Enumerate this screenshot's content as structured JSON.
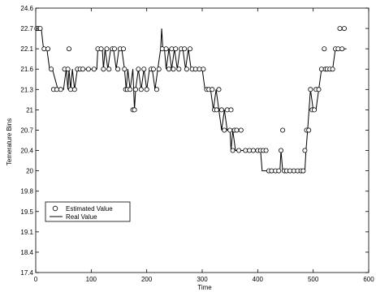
{
  "chart_data": {
    "type": "line",
    "title": "",
    "xlabel": "Time",
    "ylabel": "Temerature Bins",
    "xlim": [
      0,
      600
    ],
    "ylim": [
      17.4,
      24.6
    ],
    "x_ticks": [
      "0",
      "100",
      "200",
      "300",
      "400",
      "500",
      "600"
    ],
    "y_ticks": [
      "17.4",
      "18.4",
      "19.1",
      "19.5",
      "19.8",
      "20",
      "20.4",
      "20.7",
      "21",
      "21.3",
      "21.6",
      "22.1",
      "22.7",
      "24.6"
    ],
    "y_bins": [
      17.4,
      18.4,
      19.1,
      19.5,
      19.8,
      20,
      20.4,
      20.7,
      21,
      21.3,
      21.6,
      22.1,
      22.7,
      24.6
    ],
    "legend": {
      "position": "bottom-left",
      "entries": [
        "Estimated Value",
        "Real Value"
      ]
    },
    "series": [
      {
        "name": "Real Value",
        "style": "line",
        "x": [
          0,
          10,
          14,
          20,
          25,
          30,
          40,
          50,
          55,
          58,
          60,
          63,
          66,
          70,
          75,
          78,
          80,
          90,
          100,
          110,
          112,
          120,
          122,
          125,
          130,
          135,
          140,
          145,
          150,
          155,
          160,
          163,
          166,
          170,
          175,
          178,
          180,
          185,
          190,
          195,
          200,
          205,
          210,
          215,
          220,
          225,
          227,
          229,
          232,
          235,
          240,
          245,
          250,
          255,
          260,
          265,
          270,
          275,
          280,
          285,
          290,
          295,
          300,
          305,
          310,
          315,
          320,
          325,
          330,
          335,
          340,
          345,
          350,
          352,
          355,
          360,
          365,
          370,
          375,
          380,
          385,
          390,
          395,
          400,
          405,
          408,
          410,
          415,
          420,
          425,
          430,
          435,
          440,
          442,
          445,
          450,
          455,
          460,
          465,
          470,
          475,
          480,
          485,
          487,
          490,
          495,
          500,
          505,
          510,
          515,
          520,
          525,
          530,
          535,
          540,
          545,
          550,
          555,
          560
        ],
        "y": [
          22.7,
          22.7,
          22.1,
          22.1,
          21.6,
          21.6,
          21.3,
          21.3,
          21.6,
          21.3,
          21.6,
          21.3,
          21.6,
          21.3,
          21.6,
          21.6,
          21.6,
          21.6,
          21.6,
          21.6,
          22.1,
          22.1,
          21.6,
          22.1,
          21.6,
          22.1,
          22.1,
          21.6,
          22.1,
          22.1,
          21.6,
          21.3,
          21.6,
          21.3,
          21.6,
          21.0,
          21.3,
          21.6,
          21.3,
          21.6,
          21.3,
          21.6,
          21.6,
          21.3,
          21.6,
          22.1,
          22.7,
          22.1,
          22.1,
          21.6,
          22.1,
          21.6,
          22.1,
          21.6,
          22.1,
          22.1,
          21.6,
          22.1,
          21.6,
          21.6,
          21.6,
          21.6,
          21.6,
          21.3,
          21.3,
          21.3,
          21.0,
          21.3,
          21.0,
          20.7,
          21.0,
          20.7,
          20.7,
          20.4,
          20.7,
          20.4,
          20.4,
          20.4,
          20.4,
          20.4,
          20.4,
          20.4,
          20.4,
          20.4,
          20.4,
          20.0,
          20.0,
          20.0,
          20.0,
          20.0,
          20.0,
          20.0,
          20.0,
          20.4,
          20.0,
          20.0,
          20.0,
          20.0,
          20.0,
          20.0,
          20.0,
          20.0,
          20.0,
          20.4,
          20.7,
          21.3,
          21.0,
          21.0,
          21.3,
          21.6,
          21.6,
          21.6,
          21.6,
          21.6,
          22.1,
          22.1,
          22.1,
          22.1,
          22.1
        ]
      },
      {
        "name": "Estimated Value",
        "style": "markers",
        "x": [
          2,
          5,
          8,
          15,
          22,
          28,
          32,
          38,
          45,
          52,
          58,
          60,
          63,
          70,
          75,
          80,
          85,
          95,
          105,
          112,
          118,
          122,
          128,
          132,
          138,
          142,
          148,
          152,
          158,
          160,
          162,
          165,
          170,
          175,
          178,
          180,
          185,
          190,
          195,
          200,
          208,
          212,
          218,
          222,
          228,
          235,
          240,
          245,
          248,
          252,
          258,
          262,
          268,
          272,
          278,
          282,
          288,
          295,
          302,
          308,
          312,
          318,
          322,
          326,
          330,
          335,
          340,
          345,
          350,
          352,
          355,
          358,
          362,
          366,
          370,
          378,
          385,
          392,
          400,
          405,
          410,
          415,
          420,
          425,
          432,
          438,
          442,
          445,
          448,
          452,
          458,
          465,
          472,
          478,
          482,
          485,
          488,
          492,
          495,
          498,
          502,
          505,
          510,
          515,
          520,
          522,
          525,
          530,
          535,
          540,
          545,
          548,
          552,
          556
        ],
        "y": [
          22.7,
          22.7,
          22.7,
          22.1,
          22.1,
          21.6,
          21.3,
          21.3,
          21.3,
          21.6,
          21.6,
          22.1,
          21.3,
          21.3,
          21.6,
          21.6,
          21.6,
          21.6,
          21.6,
          22.1,
          22.1,
          21.6,
          22.1,
          21.6,
          22.1,
          22.1,
          21.6,
          22.1,
          22.1,
          21.6,
          21.3,
          21.3,
          21.3,
          21.0,
          21.0,
          21.3,
          21.6,
          21.3,
          21.6,
          21.3,
          21.6,
          21.6,
          21.3,
          21.6,
          22.1,
          22.1,
          21.6,
          22.1,
          21.6,
          22.1,
          21.6,
          22.1,
          22.1,
          21.6,
          22.1,
          21.6,
          21.6,
          21.6,
          21.6,
          21.3,
          21.3,
          21.3,
          21.0,
          21.0,
          21.3,
          21.0,
          20.7,
          21.0,
          20.7,
          21.0,
          20.4,
          20.7,
          20.7,
          20.4,
          20.7,
          20.4,
          20.4,
          20.4,
          20.4,
          20.4,
          20.4,
          20.4,
          20.0,
          20.0,
          20.0,
          20.0,
          20.4,
          20.7,
          20.0,
          20.0,
          20.0,
          20.0,
          20.0,
          20.0,
          20.0,
          20.4,
          20.7,
          20.7,
          21.3,
          21.0,
          21.0,
          21.3,
          21.3,
          21.6,
          22.1,
          21.6,
          21.6,
          21.6,
          21.6,
          22.1,
          22.1,
          22.7,
          22.1,
          22.7
        ]
      }
    ],
    "grid": false
  }
}
